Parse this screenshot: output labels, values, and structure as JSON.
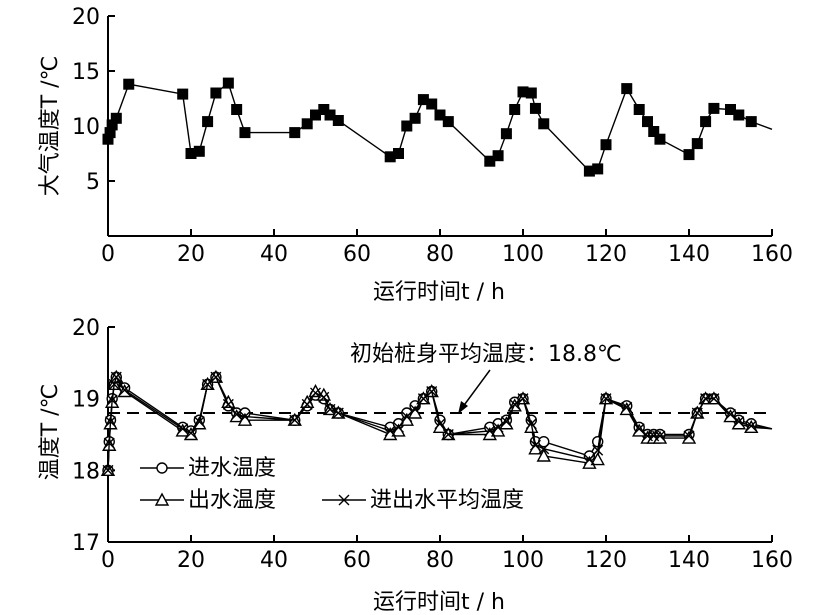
{
  "chart_data": [
    {
      "type": "line",
      "marker": "filled-square",
      "xlabel": "运行时间t / h",
      "ylabel": "大气温度T /℃",
      "xlim": [
        0,
        160
      ],
      "ylim": [
        0,
        20
      ],
      "xticks": [
        0,
        20,
        40,
        60,
        80,
        100,
        120,
        140,
        160
      ],
      "yticks": [
        5,
        10,
        15,
        20
      ],
      "grid": false,
      "series": [
        {
          "x": [
            0,
            0.5,
            1,
            2,
            5,
            18,
            20,
            22,
            24,
            26,
            29,
            31,
            33,
            45,
            48,
            50,
            52,
            53.5,
            55.5,
            68,
            70,
            72,
            74,
            76,
            78,
            80,
            82,
            92,
            94,
            96,
            98,
            100,
            102,
            103,
            105,
            116,
            118,
            120,
            125,
            128,
            130,
            131.5,
            133,
            140,
            142,
            144,
            146,
            150,
            152,
            155,
            160
          ],
          "y": [
            8.8,
            9.4,
            10.1,
            10.7,
            13.8,
            12.9,
            7.5,
            7.7,
            10.4,
            13.0,
            13.9,
            11.5,
            9.4,
            9.4,
            10.2,
            11.0,
            11.5,
            11.0,
            10.5,
            7.2,
            7.5,
            10.0,
            10.7,
            12.4,
            12.0,
            11.0,
            10.4,
            6.8,
            7.3,
            9.3,
            11.5,
            13.1,
            13.0,
            11.6,
            10.2,
            5.9,
            6.1,
            8.3,
            13.4,
            11.5,
            10.4,
            9.5,
            8.8,
            7.4,
            8.4,
            10.4,
            11.6,
            11.5,
            11.0,
            10.4,
            9.7
          ]
        }
      ]
    },
    {
      "type": "line",
      "xlabel": "运行时间t / h",
      "ylabel": "温度T /℃",
      "xlim": [
        0,
        160
      ],
      "ylim": [
        17,
        20
      ],
      "xticks": [
        0,
        20,
        40,
        60,
        80,
        100,
        120,
        140,
        160
      ],
      "yticks": [
        17,
        18,
        19,
        20
      ],
      "grid": false,
      "reference_line": {
        "y": 18.8,
        "style": "dashed",
        "annotation": "初始桩身平均温度：18.8℃"
      },
      "legend": [
        "进水温度",
        "出水温度",
        "进出水平均温度"
      ],
      "legend_placement": "bottom-left",
      "series": [
        {
          "name": "进水温度",
          "marker": "open-circle",
          "x": [
            0,
            0.3,
            0.6,
            1,
            1.5,
            2,
            4,
            18,
            20,
            22,
            24,
            26,
            29,
            31,
            33,
            45,
            48,
            50,
            52,
            53.5,
            55.5,
            68,
            70,
            72,
            74,
            76,
            78,
            80,
            82,
            92,
            94,
            96,
            98,
            100,
            102,
            103,
            105,
            116,
            118,
            120,
            125,
            128,
            130,
            131.5,
            133,
            140,
            142,
            144,
            146,
            150,
            152,
            155,
            160
          ],
          "y": [
            18.0,
            18.4,
            18.7,
            19.0,
            19.2,
            19.3,
            19.15,
            18.6,
            18.55,
            18.7,
            19.2,
            19.3,
            18.9,
            18.8,
            18.8,
            18.7,
            18.9,
            19.05,
            19.0,
            18.85,
            18.8,
            18.6,
            18.65,
            18.8,
            18.9,
            19.0,
            19.1,
            18.7,
            18.5,
            18.6,
            18.65,
            18.7,
            18.95,
            19.0,
            18.7,
            18.4,
            18.4,
            18.2,
            18.4,
            19.0,
            18.9,
            18.6,
            18.5,
            18.5,
            18.5,
            18.5,
            18.8,
            19.0,
            19.0,
            18.8,
            18.7,
            18.65,
            18.58
          ]
        },
        {
          "name": "出水温度",
          "marker": "open-triangle",
          "x": [
            0,
            0.3,
            0.6,
            1,
            1.5,
            2,
            4,
            18,
            20,
            22,
            24,
            26,
            29,
            31,
            33,
            45,
            48,
            50,
            52,
            53.5,
            55.5,
            68,
            70,
            72,
            74,
            76,
            78,
            80,
            82,
            92,
            94,
            96,
            98,
            100,
            102,
            103,
            105,
            116,
            118,
            120,
            125,
            128,
            130,
            131.5,
            133,
            140,
            142,
            144,
            146,
            150,
            152,
            155,
            160
          ],
          "y": [
            18.0,
            18.35,
            18.65,
            18.95,
            19.2,
            19.3,
            19.1,
            18.55,
            18.5,
            18.65,
            19.2,
            19.3,
            18.95,
            18.75,
            18.7,
            18.7,
            18.95,
            19.1,
            19.05,
            18.85,
            18.8,
            18.5,
            18.55,
            18.7,
            18.8,
            19.0,
            19.1,
            18.6,
            18.5,
            18.5,
            18.55,
            18.65,
            18.9,
            19.0,
            18.6,
            18.3,
            18.2,
            18.1,
            18.15,
            19.0,
            18.85,
            18.55,
            18.45,
            18.45,
            18.45,
            18.45,
            18.8,
            19.0,
            19.0,
            18.75,
            18.65,
            18.6,
            18.58
          ]
        },
        {
          "name": "进出水平均温度",
          "marker": "x-cross",
          "x": [
            0,
            0.3,
            0.6,
            1,
            1.5,
            2,
            4,
            18,
            20,
            22,
            24,
            26,
            29,
            31,
            33,
            45,
            48,
            50,
            52,
            53.5,
            55.5,
            68,
            70,
            72,
            74,
            76,
            78,
            80,
            82,
            92,
            94,
            96,
            98,
            100,
            102,
            103,
            105,
            116,
            118,
            120,
            125,
            128,
            130,
            131.5,
            133,
            140,
            142,
            144,
            146,
            150,
            152,
            155,
            160
          ],
          "y": [
            18.0,
            18.38,
            18.68,
            18.98,
            19.2,
            19.3,
            19.12,
            18.58,
            18.52,
            18.68,
            19.2,
            19.3,
            18.92,
            18.78,
            18.75,
            18.7,
            18.92,
            19.08,
            19.02,
            18.85,
            18.8,
            18.55,
            18.6,
            18.75,
            18.85,
            19.0,
            19.1,
            18.65,
            18.5,
            18.55,
            18.6,
            18.68,
            18.92,
            19.0,
            18.65,
            18.35,
            18.3,
            18.15,
            18.28,
            19.0,
            18.88,
            18.58,
            18.48,
            18.48,
            18.48,
            18.48,
            18.8,
            19.0,
            19.0,
            18.78,
            18.68,
            18.62,
            18.58
          ]
        }
      ]
    }
  ]
}
